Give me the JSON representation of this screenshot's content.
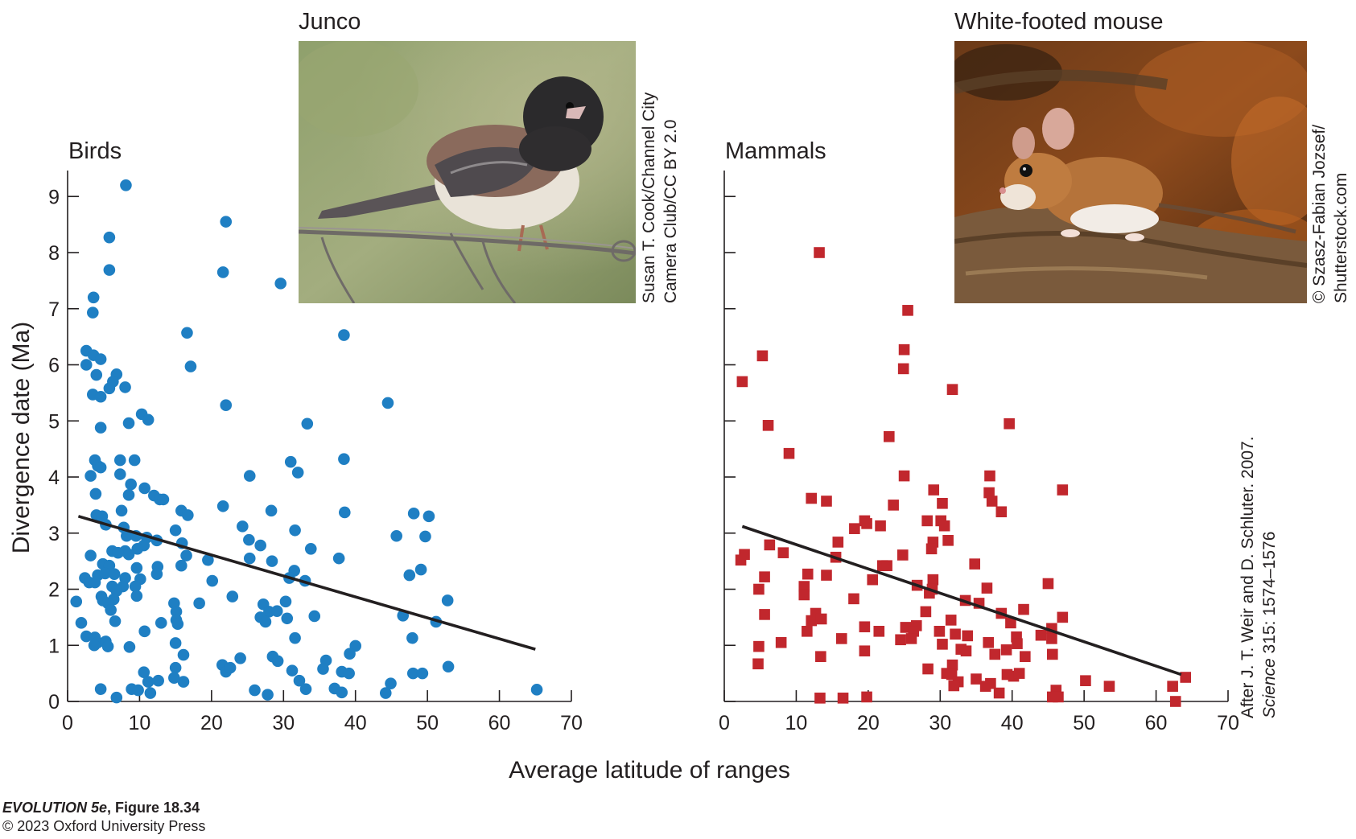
{
  "chart_data": [
    {
      "type": "scatter",
      "title": "Birds",
      "ylabel": "Divergence date (Ma)",
      "xlabel": "Average latitude of ranges",
      "xlim": [
        0,
        70
      ],
      "ylim": [
        0,
        9.5
      ],
      "xticks": [
        "0",
        "10",
        "20",
        "30",
        "40",
        "50",
        "60",
        "70"
      ],
      "yticks": [
        "0",
        "1",
        "2",
        "3",
        "4",
        "5",
        "6",
        "7",
        "8",
        "9"
      ],
      "marker": "circle",
      "color": "#1f7fc3",
      "trendline": {
        "x": [
          1.5,
          65
        ],
        "y": [
          3.3,
          0.93
        ]
      },
      "points": [
        [
          8.1,
          9.2
        ],
        [
          22,
          8.55
        ],
        [
          5.8,
          8.27
        ],
        [
          21.6,
          7.65
        ],
        [
          5.8,
          7.69
        ],
        [
          29.6,
          7.45
        ],
        [
          3.6,
          7.2
        ],
        [
          3.5,
          6.93
        ],
        [
          16.6,
          6.57
        ],
        [
          38.4,
          6.53
        ],
        [
          2.6,
          6.25
        ],
        [
          3.6,
          6.17
        ],
        [
          4.6,
          6.1
        ],
        [
          2.6,
          6.0
        ],
        [
          17.1,
          5.97
        ],
        [
          4.0,
          5.82
        ],
        [
          6.8,
          5.83
        ],
        [
          6.3,
          5.7
        ],
        [
          5.8,
          5.58
        ],
        [
          8.0,
          5.6
        ],
        [
          3.5,
          5.47
        ],
        [
          4.6,
          5.43
        ],
        [
          22.0,
          5.28
        ],
        [
          44.5,
          5.32
        ],
        [
          10.3,
          5.12
        ],
        [
          11.2,
          5.02
        ],
        [
          8.5,
          4.96
        ],
        [
          33.3,
          4.95
        ],
        [
          4.6,
          4.88
        ],
        [
          3.8,
          4.3
        ],
        [
          7.3,
          4.3
        ],
        [
          9.3,
          4.3
        ],
        [
          38.4,
          4.32
        ],
        [
          4.2,
          4.2
        ],
        [
          4.6,
          4.17
        ],
        [
          31.0,
          4.27
        ],
        [
          32.0,
          4.08
        ],
        [
          3.2,
          4.02
        ],
        [
          7.3,
          4.05
        ],
        [
          25.3,
          4.02
        ],
        [
          8.8,
          3.87
        ],
        [
          10.7,
          3.8
        ],
        [
          3.9,
          3.7
        ],
        [
          8.5,
          3.68
        ],
        [
          12.0,
          3.67
        ],
        [
          12.8,
          3.6
        ],
        [
          13.3,
          3.6
        ],
        [
          21.6,
          3.48
        ],
        [
          15.8,
          3.4
        ],
        [
          16.7,
          3.32
        ],
        [
          7.5,
          3.4
        ],
        [
          4.0,
          3.32
        ],
        [
          4.8,
          3.3
        ],
        [
          38.5,
          3.37
        ],
        [
          48.1,
          3.35
        ],
        [
          50.2,
          3.3
        ],
        [
          28.3,
          3.4
        ],
        [
          5.3,
          3.15
        ],
        [
          7.8,
          3.1
        ],
        [
          15.0,
          3.05
        ],
        [
          24.3,
          3.12
        ],
        [
          31.6,
          3.05
        ],
        [
          8.2,
          2.95
        ],
        [
          9.5,
          2.95
        ],
        [
          11.0,
          2.92
        ],
        [
          12.4,
          2.87
        ],
        [
          25.2,
          2.88
        ],
        [
          45.7,
          2.95
        ],
        [
          49.7,
          2.94
        ],
        [
          10.6,
          2.78
        ],
        [
          15.9,
          2.82
        ],
        [
          26.8,
          2.78
        ],
        [
          6.2,
          2.68
        ],
        [
          8.0,
          2.68
        ],
        [
          9.7,
          2.72
        ],
        [
          3.2,
          2.6
        ],
        [
          7.0,
          2.65
        ],
        [
          8.5,
          2.62
        ],
        [
          16.5,
          2.6
        ],
        [
          19.5,
          2.52
        ],
        [
          25.3,
          2.55
        ],
        [
          28.4,
          2.5
        ],
        [
          33.8,
          2.72
        ],
        [
          37.7,
          2.55
        ],
        [
          4.9,
          2.45
        ],
        [
          5.8,
          2.42
        ],
        [
          9.6,
          2.38
        ],
        [
          12.5,
          2.4
        ],
        [
          15.8,
          2.42
        ],
        [
          31.5,
          2.33
        ],
        [
          49.1,
          2.35
        ],
        [
          2.4,
          2.2
        ],
        [
          3.0,
          2.12
        ],
        [
          4.2,
          2.25
        ],
        [
          5.2,
          2.28
        ],
        [
          6.5,
          2.27
        ],
        [
          8.0,
          2.2
        ],
        [
          10.1,
          2.18
        ],
        [
          12.4,
          2.27
        ],
        [
          20.1,
          2.15
        ],
        [
          30.8,
          2.2
        ],
        [
          33.0,
          2.15
        ],
        [
          47.5,
          2.25
        ],
        [
          3.8,
          2.12
        ],
        [
          6.2,
          2.05
        ],
        [
          7.7,
          2.05
        ],
        [
          9.4,
          2.05
        ],
        [
          6.8,
          1.97
        ],
        [
          4.7,
          1.87
        ],
        [
          6.4,
          1.82
        ],
        [
          9.6,
          1.88
        ],
        [
          22.9,
          1.87
        ],
        [
          1.2,
          1.78
        ],
        [
          4.9,
          1.8
        ],
        [
          5.6,
          1.75
        ],
        [
          14.8,
          1.75
        ],
        [
          18.3,
          1.75
        ],
        [
          27.2,
          1.73
        ],
        [
          30.3,
          1.78
        ],
        [
          52.8,
          1.8
        ],
        [
          6.0,
          1.63
        ],
        [
          15.1,
          1.6
        ],
        [
          28.0,
          1.6
        ],
        [
          29.1,
          1.61
        ],
        [
          15.1,
          1.45
        ],
        [
          26.8,
          1.5
        ],
        [
          34.3,
          1.52
        ],
        [
          46.6,
          1.53
        ],
        [
          1.9,
          1.4
        ],
        [
          6.6,
          1.43
        ],
        [
          13.0,
          1.4
        ],
        [
          15.3,
          1.38
        ],
        [
          27.5,
          1.42
        ],
        [
          30.5,
          1.48
        ],
        [
          51.2,
          1.42
        ],
        [
          2.6,
          1.16
        ],
        [
          3.8,
          1.14
        ],
        [
          10.7,
          1.25
        ],
        [
          31.6,
          1.13
        ],
        [
          4.2,
          1.05
        ],
        [
          5.3,
          1.07
        ],
        [
          15.0,
          1.04
        ],
        [
          47.9,
          1.13
        ],
        [
          3.7,
          1.0
        ],
        [
          5.6,
          0.98
        ],
        [
          8.6,
          0.97
        ],
        [
          16.1,
          0.83
        ],
        [
          40.0,
          0.99
        ],
        [
          28.5,
          0.8
        ],
        [
          29.2,
          0.72
        ],
        [
          24.0,
          0.77
        ],
        [
          35.9,
          0.73
        ],
        [
          39.2,
          0.85
        ],
        [
          21.5,
          0.65
        ],
        [
          22.0,
          0.53
        ],
        [
          22.6,
          0.6
        ],
        [
          31.2,
          0.55
        ],
        [
          35.5,
          0.58
        ],
        [
          38.1,
          0.53
        ],
        [
          39.1,
          0.5
        ],
        [
          10.6,
          0.52
        ],
        [
          15.0,
          0.6
        ],
        [
          48.0,
          0.5
        ],
        [
          49.3,
          0.5
        ],
        [
          52.9,
          0.62
        ],
        [
          16.1,
          0.35
        ],
        [
          14.8,
          0.42
        ],
        [
          11.2,
          0.35
        ],
        [
          12.6,
          0.37
        ],
        [
          32.2,
          0.37
        ],
        [
          44.9,
          0.32
        ],
        [
          4.6,
          0.22
        ],
        [
          8.9,
          0.22
        ],
        [
          9.8,
          0.2
        ],
        [
          11.5,
          0.15
        ],
        [
          26.0,
          0.2
        ],
        [
          33.1,
          0.22
        ],
        [
          37.1,
          0.23
        ],
        [
          44.2,
          0.15
        ],
        [
          38.1,
          0.16
        ],
        [
          27.8,
          0.12
        ],
        [
          6.8,
          0.07
        ],
        [
          65.2,
          0.21
        ]
      ]
    },
    {
      "type": "scatter",
      "title": "Mammals",
      "xlabel": "Average latitude of ranges",
      "xlim": [
        0,
        70
      ],
      "ylim": [
        0,
        9.5
      ],
      "xticks": [
        "0",
        "10",
        "20",
        "30",
        "40",
        "50",
        "60",
        "70"
      ],
      "marker": "square",
      "color": "#c1272d",
      "trendline": {
        "x": [
          2.5,
          63.5
        ],
        "y": [
          3.12,
          0.48
        ]
      },
      "points": [
        [
          13.2,
          8.0
        ],
        [
          25.5,
          6.97
        ],
        [
          5.3,
          6.16
        ],
        [
          25.0,
          6.27
        ],
        [
          24.9,
          5.93
        ],
        [
          2.5,
          5.7
        ],
        [
          31.7,
          5.56
        ],
        [
          6.1,
          4.92
        ],
        [
          39.6,
          4.95
        ],
        [
          9.0,
          4.42
        ],
        [
          22.9,
          4.72
        ],
        [
          25.0,
          4.02
        ],
        [
          36.9,
          4.02
        ],
        [
          47.0,
          3.77
        ],
        [
          29.1,
          3.77
        ],
        [
          36.8,
          3.72
        ],
        [
          37.2,
          3.57
        ],
        [
          12.1,
          3.62
        ],
        [
          14.2,
          3.57
        ],
        [
          30.3,
          3.53
        ],
        [
          23.5,
          3.5
        ],
        [
          38.5,
          3.38
        ],
        [
          19.5,
          3.22
        ],
        [
          28.2,
          3.22
        ],
        [
          30.1,
          3.22
        ],
        [
          30.6,
          3.13
        ],
        [
          18.1,
          3.08
        ],
        [
          21.7,
          3.13
        ],
        [
          19.8,
          3.17
        ],
        [
          31.1,
          2.87
        ],
        [
          15.8,
          2.84
        ],
        [
          29.0,
          2.84
        ],
        [
          6.3,
          2.79
        ],
        [
          28.8,
          2.72
        ],
        [
          24.8,
          2.61
        ],
        [
          2.3,
          2.52
        ],
        [
          2.8,
          2.62
        ],
        [
          8.2,
          2.65
        ],
        [
          15.5,
          2.57
        ],
        [
          22.0,
          2.42
        ],
        [
          22.6,
          2.42
        ],
        [
          34.8,
          2.45
        ],
        [
          11.6,
          2.27
        ],
        [
          14.2,
          2.25
        ],
        [
          29.0,
          2.17
        ],
        [
          5.6,
          2.22
        ],
        [
          20.6,
          2.17
        ],
        [
          11.1,
          2.05
        ],
        [
          26.8,
          2.07
        ],
        [
          28.9,
          2.0
        ],
        [
          4.8,
          2.0
        ],
        [
          11.1,
          1.9
        ],
        [
          28.5,
          1.93
        ],
        [
          36.5,
          2.02
        ],
        [
          45.0,
          2.1
        ],
        [
          18.0,
          1.83
        ],
        [
          33.5,
          1.8
        ],
        [
          35.4,
          1.75
        ],
        [
          41.6,
          1.64
        ],
        [
          5.6,
          1.55
        ],
        [
          38.5,
          1.57
        ],
        [
          47.0,
          1.5
        ],
        [
          12.7,
          1.57
        ],
        [
          25.2,
          1.32
        ],
        [
          12.1,
          1.44
        ],
        [
          13.5,
          1.47
        ],
        [
          26.7,
          1.35
        ],
        [
          28.0,
          1.6
        ],
        [
          31.5,
          1.45
        ],
        [
          39.8,
          1.4
        ],
        [
          45.5,
          1.3
        ],
        [
          11.5,
          1.25
        ],
        [
          19.5,
          1.33
        ],
        [
          21.5,
          1.25
        ],
        [
          26.3,
          1.25
        ],
        [
          29.9,
          1.25
        ],
        [
          32.1,
          1.2
        ],
        [
          40.6,
          1.15
        ],
        [
          26.0,
          1.12
        ],
        [
          24.5,
          1.1
        ],
        [
          33.8,
          1.17
        ],
        [
          44.0,
          1.18
        ],
        [
          45.5,
          1.12
        ],
        [
          7.9,
          1.05
        ],
        [
          16.3,
          1.12
        ],
        [
          30.3,
          1.02
        ],
        [
          36.7,
          1.05
        ],
        [
          40.7,
          1.03
        ],
        [
          4.8,
          0.98
        ],
        [
          19.5,
          0.9
        ],
        [
          32.9,
          0.93
        ],
        [
          33.6,
          0.9
        ],
        [
          37.6,
          0.84
        ],
        [
          39.2,
          0.92
        ],
        [
          45.6,
          0.84
        ],
        [
          13.4,
          0.8
        ],
        [
          41.8,
          0.8
        ],
        [
          4.7,
          0.67
        ],
        [
          28.3,
          0.58
        ],
        [
          31.7,
          0.65
        ],
        [
          30.9,
          0.5
        ],
        [
          31.6,
          0.48
        ],
        [
          35.0,
          0.4
        ],
        [
          39.3,
          0.48
        ],
        [
          40.2,
          0.45
        ],
        [
          41.0,
          0.5
        ],
        [
          32.5,
          0.35
        ],
        [
          37.0,
          0.32
        ],
        [
          31.9,
          0.28
        ],
        [
          36.3,
          0.27
        ],
        [
          50.2,
          0.37
        ],
        [
          53.5,
          0.27
        ],
        [
          62.3,
          0.27
        ],
        [
          64.1,
          0.43
        ],
        [
          38.2,
          0.15
        ],
        [
          46.1,
          0.2
        ],
        [
          45.6,
          0.08
        ],
        [
          46.4,
          0.08
        ],
        [
          13.3,
          0.06
        ],
        [
          16.5,
          0.06
        ],
        [
          19.8,
          0.08
        ],
        [
          62.7,
          0.0
        ]
      ]
    }
  ],
  "photos": {
    "junco": {
      "title": "Junco",
      "credit_line1": "Susan T. Cook/Channel City",
      "credit_line2": "Camera Club/CC BY 2.0"
    },
    "mouse": {
      "title": "White-footed mouse",
      "credit_line1": "© Szasz-Fabian Jozsef/",
      "credit_line2": "Shutterstock.com"
    }
  },
  "source_credit": {
    "line1": "After J. T. Weir and D. Schluter. 2007.",
    "line2_journal": "Science",
    "line2_rest": " 315: 1574–1576"
  },
  "footer": {
    "book_italic": "EVOLUTION 5e",
    "figure": ", Figure 18.34",
    "copyright": "© 2023 Oxford University Press"
  }
}
